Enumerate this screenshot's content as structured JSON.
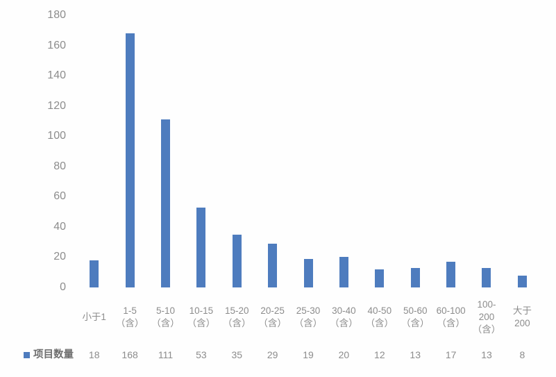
{
  "chart_data": {
    "type": "bar",
    "title": "",
    "legend": "项目数量",
    "categories": [
      "小于1",
      "1-5\n（含）",
      "5-10\n（含）",
      "10-15\n（含）",
      "15-20\n（含）",
      "20-25\n（含）",
      "25-30\n（含）",
      "30-40\n（含）",
      "40-50\n（含）",
      "50-60\n（含）",
      "60-100\n（含）",
      "100-\n200\n（含）",
      "大于\n200"
    ],
    "values": [
      18,
      168,
      111,
      53,
      35,
      29,
      19,
      20,
      12,
      13,
      17,
      13,
      8
    ],
    "y_ticks": [
      0,
      20,
      40,
      60,
      80,
      100,
      120,
      140,
      160,
      180
    ],
    "ylim": [
      0,
      180
    ],
    "xlabel": "",
    "ylabel": "",
    "grid": false,
    "legend_position": "bottom-left",
    "bar_color": "#4e7cbe",
    "text_color": "#8c8c8c"
  }
}
